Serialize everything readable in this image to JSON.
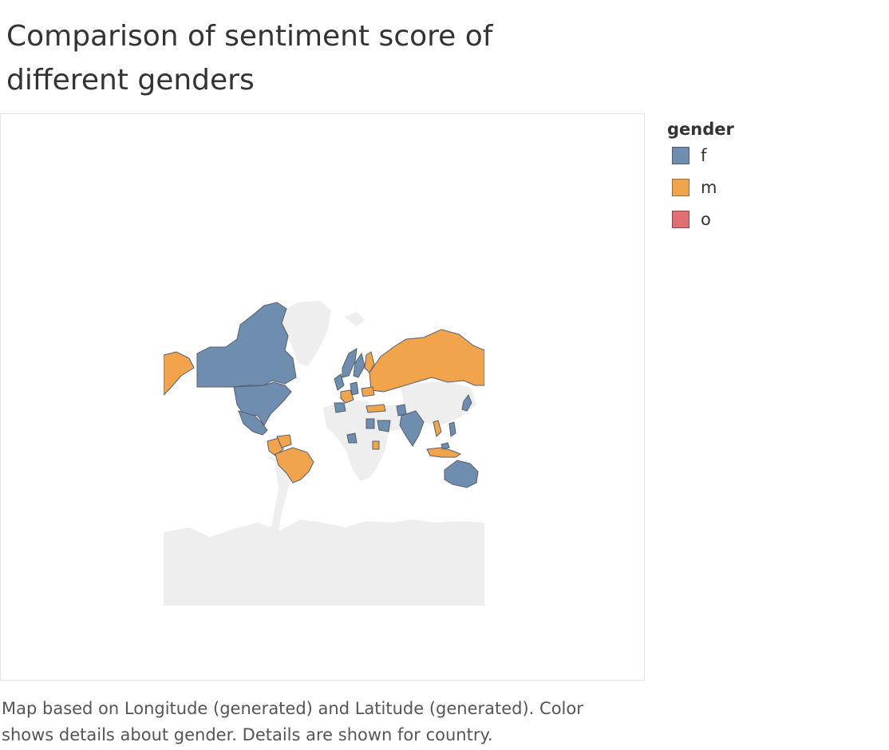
{
  "title": "Comparison of sentiment score of different genders",
  "legend": {
    "title": "gender",
    "items": [
      {
        "label": "f",
        "color": "#6f8dae"
      },
      {
        "label": "m",
        "color": "#f2a44d"
      },
      {
        "label": "o",
        "color": "#e16e72"
      }
    ]
  },
  "map": {
    "land_color": "#eeeeee",
    "border_color": "#555f6f",
    "countries": [
      {
        "name": "Canada",
        "gender": "f"
      },
      {
        "name": "United States",
        "gender": "f"
      },
      {
        "name": "Greenland",
        "gender": null
      },
      {
        "name": "Alaska",
        "gender": "m"
      },
      {
        "name": "Mexico",
        "gender": "f"
      },
      {
        "name": "Colombia",
        "gender": "m"
      },
      {
        "name": "Venezuela",
        "gender": "m"
      },
      {
        "name": "Brazil",
        "gender": "m"
      },
      {
        "name": "Russia",
        "gender": "m"
      },
      {
        "name": "India",
        "gender": "f"
      },
      {
        "name": "Australia",
        "gender": "f"
      },
      {
        "name": "Indonesia",
        "gender": "m"
      },
      {
        "name": "Norway",
        "gender": "f"
      },
      {
        "name": "Sweden",
        "gender": "f"
      },
      {
        "name": "Finland",
        "gender": "m"
      },
      {
        "name": "United Kingdom",
        "gender": "f"
      },
      {
        "name": "France",
        "gender": "m"
      },
      {
        "name": "Germany",
        "gender": "f"
      },
      {
        "name": "Spain",
        "gender": "f"
      },
      {
        "name": "Ukraine",
        "gender": "m"
      },
      {
        "name": "Turkey",
        "gender": "m"
      },
      {
        "name": "Egypt",
        "gender": "f"
      },
      {
        "name": "Saudi Arabia",
        "gender": "f"
      },
      {
        "name": "Nigeria",
        "gender": "f"
      },
      {
        "name": "Kenya",
        "gender": "m"
      },
      {
        "name": "Philippines",
        "gender": "f"
      },
      {
        "name": "Japan",
        "gender": "f"
      },
      {
        "name": "Vietnam",
        "gender": "m"
      },
      {
        "name": "Malaysia",
        "gender": "f"
      },
      {
        "name": "Pakistan",
        "gender": "f"
      }
    ]
  },
  "caption": "Map based on Longitude (generated) and Latitude (generated).  Color shows details about gender.  Details are shown for country."
}
